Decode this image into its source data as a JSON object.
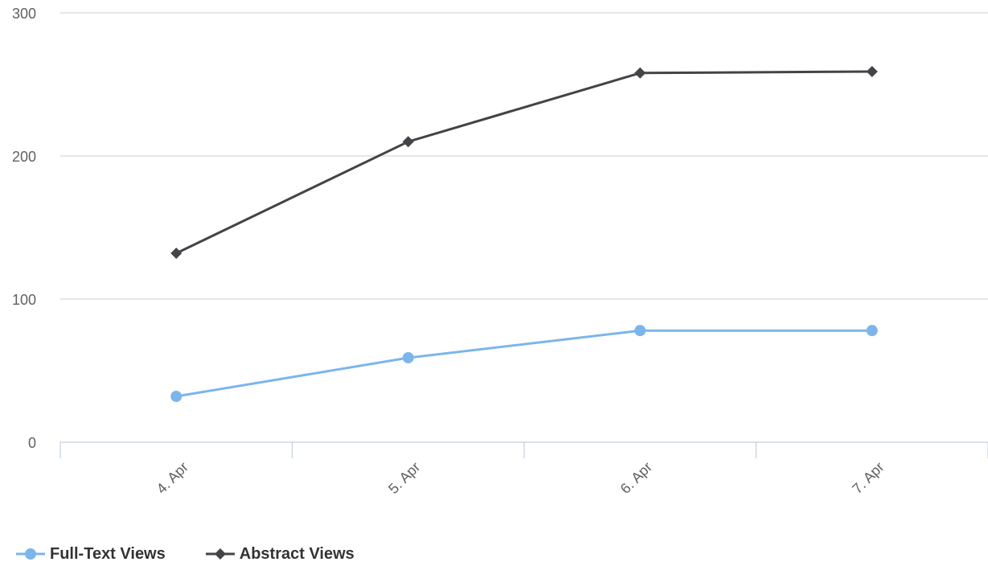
{
  "chart_data": {
    "type": "line",
    "categories": [
      "4. Apr",
      "5. Apr",
      "6. Apr",
      "7. Apr"
    ],
    "series": [
      {
        "name": "Full-Text Views",
        "values": [
          32,
          59,
          78,
          78
        ],
        "color": "#7cb5ec",
        "marker": "circle"
      },
      {
        "name": "Abstract Views",
        "values": [
          132,
          210,
          258,
          259
        ],
        "color": "#434348",
        "marker": "diamond"
      }
    ],
    "yticks": [
      "0",
      "100",
      "200",
      "300"
    ],
    "ylim": [
      0,
      300
    ],
    "grid": true,
    "legend_position": "bottom-left"
  }
}
